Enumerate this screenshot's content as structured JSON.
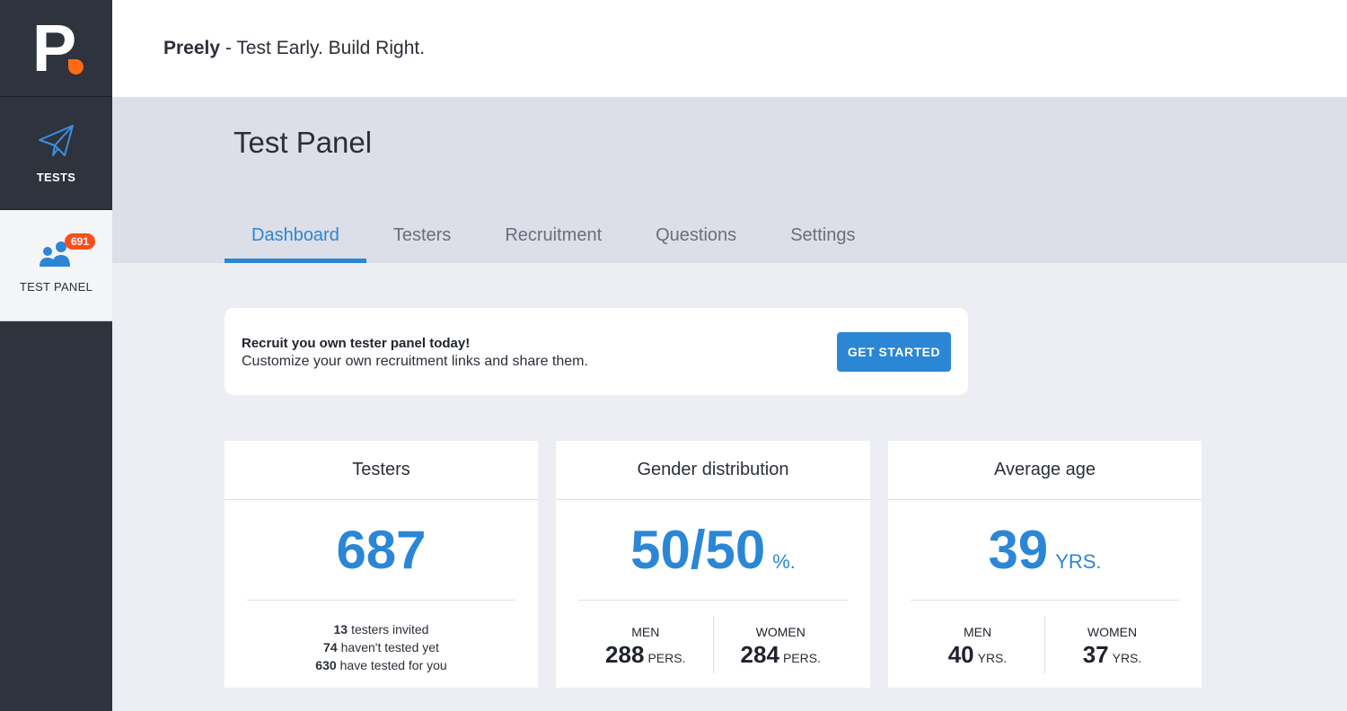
{
  "brand": {
    "name": "Preely",
    "tagline": " - Test Early. Build Right."
  },
  "sidebar": {
    "items": [
      {
        "label": "TESTS",
        "icon": "paper-plane-icon"
      },
      {
        "label": "TEST PANEL",
        "icon": "users-icon",
        "badge": "691"
      }
    ]
  },
  "panel": {
    "title": "Test Panel",
    "tabs": [
      {
        "label": "Dashboard",
        "active": true
      },
      {
        "label": "Testers"
      },
      {
        "label": "Recruitment"
      },
      {
        "label": "Questions"
      },
      {
        "label": "Settings"
      }
    ]
  },
  "banner": {
    "title": "Recruit you own tester panel today!",
    "subtitle": "Customize your own recruitment links and share them.",
    "button": "GET STARTED"
  },
  "cards": {
    "testers": {
      "title": "Testers",
      "value": "687",
      "lines": [
        {
          "count": "13",
          "text": "testers invited"
        },
        {
          "count": "74",
          "text": "haven't tested yet"
        },
        {
          "count": "630",
          "text": "have tested for you"
        }
      ]
    },
    "gender": {
      "title": "Gender distribution",
      "value": "50/50",
      "unit": "%.",
      "men_label": "MEN",
      "men_value": "288",
      "women_label": "WOMEN",
      "women_value": "284",
      "unit_small": "PERS."
    },
    "age": {
      "title": "Average age",
      "value": "39",
      "unit": "YRS.",
      "men_label": "MEN",
      "men_value": "40",
      "women_label": "WOMEN",
      "women_value": "37",
      "unit_small": "YRS."
    }
  },
  "colors": {
    "accent": "#2b86d6",
    "badge": "#ff4c1a",
    "logo_dot": "#ff6a13",
    "sidebar": "#2e333d"
  }
}
